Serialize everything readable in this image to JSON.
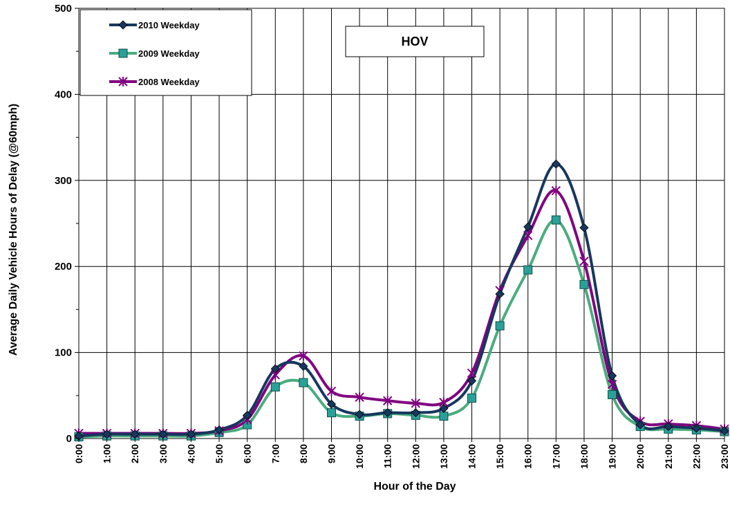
{
  "chart_data": {
    "type": "line",
    "title": "HOV",
    "xlabel": "Hour of the Day",
    "ylabel": "Average Daily Vehicle Hours of Delay (@60mph)",
    "ylim": [
      0,
      500
    ],
    "yticks": [
      "0",
      "100",
      "200",
      "300",
      "400",
      "500"
    ],
    "categories": [
      "0:00",
      "1:00",
      "2:00",
      "3:00",
      "4:00",
      "5:00",
      "6:00",
      "7:00",
      "8:00",
      "9:00",
      "10:00",
      "11:00",
      "12:00",
      "13:00",
      "14:00",
      "15:00",
      "16:00",
      "17:00",
      "18:00",
      "19:00",
      "20:00",
      "21:00",
      "22:00",
      "23:00"
    ],
    "grid": true,
    "legend_position": "top-left",
    "series": [
      {
        "name": "2010 Weekday",
        "color": "#17375E",
        "marker": "diamond",
        "values": [
          3,
          5,
          5,
          5,
          5,
          10,
          27,
          81,
          84,
          40,
          28,
          30,
          30,
          35,
          67,
          168,
          246,
          319,
          245,
          73,
          16,
          14,
          12,
          9
        ]
      },
      {
        "name": "2009 Weekday",
        "color": "#4AAC7E",
        "marker": "square",
        "values": [
          2,
          3,
          3,
          3,
          3,
          7,
          16,
          60,
          65,
          30,
          26,
          29,
          27,
          26,
          47,
          131,
          196,
          254,
          179,
          51,
          14,
          11,
          10,
          8
        ]
      },
      {
        "name": "2008 Weekday",
        "color": "#800080",
        "marker": "star",
        "values": [
          6,
          6,
          6,
          6,
          6,
          9,
          22,
          74,
          96,
          55,
          48,
          44,
          41,
          42,
          76,
          172,
          236,
          288,
          206,
          63,
          20,
          17,
          15,
          11
        ]
      }
    ]
  }
}
